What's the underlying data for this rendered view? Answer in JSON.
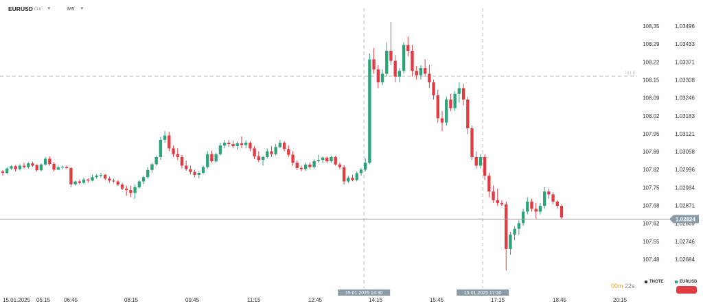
{
  "header": {
    "symbol": "EURUSD",
    "symbol_sub": "CFD",
    "timeframe": "M5"
  },
  "colors": {
    "up": "#2ea37a",
    "down": "#e03c44",
    "grid_dashed": "#bbbbbb",
    "price_line": "#999999",
    "price_tag_bg": "#8a9ba8",
    "countdown": "#f0a030"
  },
  "chart_data": {
    "type": "candlestick",
    "x_ticks": [
      "15.01.2025",
      "05:15",
      "06:45",
      "08:15",
      "09:45",
      "11:15",
      "12:45",
      "14:15",
      "15:45",
      "17:15",
      "18:45",
      "20:15"
    ],
    "y_axis_left": [
      "108.35",
      "108.29",
      "108.22",
      "108.15",
      "108.09",
      "108.02",
      "107.95",
      "107.89",
      "107.82",
      "107.75",
      "107.68",
      "107.62",
      "107.55",
      "107.48"
    ],
    "y_axis_right": [
      "1.03496",
      "1.03433",
      "1.03371",
      "1.03308",
      "1.03246",
      "1.03183",
      "1.03121",
      "1.03058",
      "1.02996",
      "1.02934",
      "1.02871",
      "1.02809",
      "1.02746",
      "1.02684"
    ],
    "ylim_right": [
      1.026,
      1.0356
    ],
    "current_price": "1.02824",
    "current_price_value": 1.02824,
    "horizontal_level": {
      "label": "161.8"
    },
    "event_markers": [
      "15.01.2025 14:30",
      "15.01.2025 17:30"
    ],
    "series": [
      {
        "name": "EURUSD",
        "color": "#2ea37a"
      },
      {
        "name": "TNOTE",
        "color": "#333333"
      }
    ],
    "candles": [
      [
        1.0299,
        1.02995,
        1.02975,
        1.02985
      ],
      [
        1.02985,
        1.03005,
        1.0298,
        1.03
      ],
      [
        1.03,
        1.03012,
        1.02995,
        1.03008
      ],
      [
        1.03008,
        1.03012,
        1.0299,
        1.02998
      ],
      [
        1.02998,
        1.03015,
        1.02993,
        1.0301
      ],
      [
        1.0301,
        1.0302,
        1.03,
        1.03005
      ],
      [
        1.03005,
        1.03022,
        1.03,
        1.03018
      ],
      [
        1.03018,
        1.03024,
        1.03006,
        1.0301
      ],
      [
        1.03012,
        1.03015,
        1.0299,
        1.02994
      ],
      [
        1.02994,
        1.03018,
        1.0299,
        1.03014
      ],
      [
        1.03014,
        1.0304,
        1.0301,
        1.03034
      ],
      [
        1.03034,
        1.03042,
        1.0301,
        1.03016
      ],
      [
        1.03016,
        1.03022,
        1.0299,
        1.02996
      ],
      [
        1.02996,
        1.0301,
        1.02994,
        1.03004
      ],
      [
        1.03004,
        1.0301,
        1.02998,
        1.03006
      ],
      [
        1.03006,
        1.0301,
        1.02998,
        1.03002
      ],
      [
        1.03002,
        1.03004,
        1.02935,
        1.02945
      ],
      [
        1.02945,
        1.02958,
        1.0294,
        1.02955
      ],
      [
        1.02955,
        1.02962,
        1.02945,
        1.0295
      ],
      [
        1.0295,
        1.02968,
        1.02946,
        1.02962
      ],
      [
        1.02962,
        1.02966,
        1.0295,
        1.02958
      ],
      [
        1.02958,
        1.02978,
        1.02955,
        1.0297
      ],
      [
        1.0297,
        1.0298,
        1.02965,
        1.02975
      ],
      [
        1.02975,
        1.02985,
        1.02968,
        1.02978
      ],
      [
        1.02978,
        1.02982,
        1.0296,
        1.02965
      ],
      [
        1.02965,
        1.02972,
        1.0295,
        1.02958
      ],
      [
        1.02958,
        1.02965,
        1.0295,
        1.02955
      ],
      [
        1.02955,
        1.0296,
        1.0294,
        1.02944
      ],
      [
        1.02944,
        1.0295,
        1.02925,
        1.0293
      ],
      [
        1.0293,
        1.0294,
        1.02905,
        1.02925
      ],
      [
        1.02925,
        1.0294,
        1.029,
        1.02915
      ],
      [
        1.02915,
        1.02945,
        1.02895,
        1.02935
      ],
      [
        1.02935,
        1.0296,
        1.0293,
        1.02955
      ],
      [
        1.02955,
        1.02975,
        1.02945,
        1.0297
      ],
      [
        1.0297,
        1.03005,
        1.02965,
        1.02995
      ],
      [
        1.02995,
        1.0302,
        1.02985,
        1.03015
      ],
      [
        1.03015,
        1.03045,
        1.0301,
        1.0304
      ],
      [
        1.0304,
        1.0311,
        1.0303,
        1.031
      ],
      [
        1.031,
        1.0313,
        1.0309,
        1.03115
      ],
      [
        1.03115,
        1.03128,
        1.0306,
        1.0307
      ],
      [
        1.0307,
        1.0308,
        1.0304,
        1.0305
      ],
      [
        1.0305,
        1.0307,
        1.0303,
        1.0304
      ],
      [
        1.0304,
        1.03048,
        1.03,
        1.0301
      ],
      [
        1.0301,
        1.03028,
        1.02992,
        1.02998
      ],
      [
        1.02998,
        1.0301,
        1.0298,
        1.02988
      ],
      [
        1.02988,
        1.02996,
        1.0297,
        1.02978
      ],
      [
        1.02978,
        1.0299,
        1.02965,
        1.02985
      ],
      [
        1.02985,
        1.0301,
        1.0298,
        1.03005
      ],
      [
        1.03005,
        1.0306,
        1.03,
        1.0305
      ],
      [
        1.0305,
        1.03062,
        1.0302,
        1.03025
      ],
      [
        1.03025,
        1.03055,
        1.0302,
        1.0305
      ],
      [
        1.0305,
        1.0309,
        1.03045,
        1.0308
      ],
      [
        1.0308,
        1.031,
        1.0307,
        1.0309
      ],
      [
        1.0309,
        1.031,
        1.03075,
        1.03085
      ],
      [
        1.03085,
        1.03098,
        1.0307,
        1.03078
      ],
      [
        1.03078,
        1.03095,
        1.03065,
        1.03088
      ],
      [
        1.03088,
        1.03112,
        1.0307,
        1.03082
      ],
      [
        1.03082,
        1.03098,
        1.0307,
        1.0309
      ],
      [
        1.0309,
        1.03095,
        1.0306,
        1.0307
      ],
      [
        1.0307,
        1.03078,
        1.03032,
        1.03042
      ],
      [
        1.03042,
        1.0306,
        1.03022,
        1.0303
      ],
      [
        1.0303,
        1.03045,
        1.0301,
        1.0304
      ],
      [
        1.0304,
        1.0307,
        1.03035,
        1.0306
      ],
      [
        1.0306,
        1.03078,
        1.0304,
        1.0305
      ],
      [
        1.0305,
        1.03085,
        1.03045,
        1.03075
      ],
      [
        1.03075,
        1.031,
        1.0307,
        1.0309
      ],
      [
        1.0309,
        1.03095,
        1.0306,
        1.03068
      ],
      [
        1.03068,
        1.0308,
        1.0304,
        1.03048
      ],
      [
        1.03048,
        1.0306,
        1.0301,
        1.0302
      ],
      [
        1.0302,
        1.03028,
        1.02995,
        1.03002
      ],
      [
        1.03002,
        1.0301,
        1.0299,
        1.02998
      ],
      [
        1.02998,
        1.0302,
        1.02992,
        1.03014
      ],
      [
        1.03014,
        1.03022,
        1.02998,
        1.03005
      ],
      [
        1.03005,
        1.03032,
        1.03,
        1.03026
      ],
      [
        1.03026,
        1.03048,
        1.0302,
        1.0303
      ],
      [
        1.0303,
        1.03042,
        1.03018,
        1.03038
      ],
      [
        1.03038,
        1.03042,
        1.0302,
        1.03025
      ],
      [
        1.03025,
        1.03045,
        1.0302,
        1.0304
      ],
      [
        1.0304,
        1.03044,
        1.0301,
        1.03014
      ],
      [
        1.03014,
        1.0302,
        1.02998,
        1.03005
      ],
      [
        1.03005,
        1.03012,
        1.02945,
        1.02955
      ],
      [
        1.02955,
        1.02975,
        1.0295,
        1.02968
      ],
      [
        1.02968,
        1.02978,
        1.02955,
        1.0296
      ],
      [
        1.0296,
        1.0299,
        1.02955,
        1.02984
      ],
      [
        1.02984,
        1.03002,
        1.02975,
        1.02996
      ],
      [
        1.02996,
        1.03035,
        1.0299,
        1.0302
      ],
      [
        1.0302,
        1.034,
        1.03015,
        1.0338
      ],
      [
        1.0338,
        1.0342,
        1.0333,
        1.03345
      ],
      [
        1.03345,
        1.0336,
        1.0328,
        1.033
      ],
      [
        1.033,
        1.03345,
        1.0329,
        1.0333
      ],
      [
        1.0333,
        1.0344,
        1.0332,
        1.0341
      ],
      [
        1.0341,
        1.0351,
        1.0336,
        1.03375
      ],
      [
        1.03375,
        1.03395,
        1.033,
        1.0332
      ],
      [
        1.0332,
        1.0335,
        1.033,
        1.0334
      ],
      [
        1.0334,
        1.0344,
        1.0333,
        1.0343
      ],
      [
        1.0343,
        1.0346,
        1.0339,
        1.0341
      ],
      [
        1.0341,
        1.0343,
        1.0332,
        1.0334
      ],
      [
        1.0334,
        1.03358,
        1.0331,
        1.03325
      ],
      [
        1.03325,
        1.0336,
        1.0331,
        1.0335
      ],
      [
        1.0335,
        1.0338,
        1.0332,
        1.0333
      ],
      [
        1.0333,
        1.0336,
        1.0328,
        1.033
      ],
      [
        1.033,
        1.0331,
        1.0324,
        1.03255
      ],
      [
        1.03255,
        1.03275,
        1.0316,
        1.03175
      ],
      [
        1.03175,
        1.032,
        1.0313,
        1.0316
      ],
      [
        1.0316,
        1.0325,
        1.0315,
        1.0324
      ],
      [
        1.0324,
        1.0326,
        1.032,
        1.0321
      ],
      [
        1.0321,
        1.0327,
        1.032,
        1.0326
      ],
      [
        1.0326,
        1.033,
        1.0323,
        1.0328
      ],
      [
        1.0328,
        1.03295,
        1.0322,
        1.0324
      ],
      [
        1.0324,
        1.0325,
        1.0312,
        1.0314
      ],
      [
        1.0314,
        1.0315,
        1.0303,
        1.0304
      ],
      [
        1.0304,
        1.0306,
        1.03,
        1.0301
      ],
      [
        1.0301,
        1.0305,
        1.03,
        1.0304
      ],
      [
        1.0304,
        1.0305,
        1.0296,
        1.02975
      ],
      [
        1.02975,
        1.02985,
        1.029,
        1.0292
      ],
      [
        1.0292,
        1.0294,
        1.0288,
        1.0289
      ],
      [
        1.0289,
        1.0293,
        1.0287,
        1.0288
      ],
      [
        1.0288,
        1.0289,
        1.0287,
        1.02875
      ],
      [
        1.02875,
        1.02885,
        1.02645,
        1.0272
      ],
      [
        1.0272,
        1.0278,
        1.027,
        1.0277
      ],
      [
        1.0277,
        1.028,
        1.0275,
        1.0279
      ],
      [
        1.0279,
        1.0282,
        1.0277,
        1.0281
      ],
      [
        1.0281,
        1.0286,
        1.028,
        1.0285
      ],
      [
        1.0285,
        1.029,
        1.0284,
        1.02885
      ],
      [
        1.02885,
        1.02895,
        1.0285,
        1.0286
      ],
      [
        1.0286,
        1.0288,
        1.02825,
        1.0285
      ],
      [
        1.0285,
        1.0288,
        1.0284,
        1.0287
      ],
      [
        1.0287,
        1.02935,
        1.0286,
        1.0292
      ],
      [
        1.0292,
        1.0293,
        1.02895,
        1.0291
      ],
      [
        1.0291,
        1.02918,
        1.02875,
        1.02885
      ],
      [
        1.02885,
        1.0289,
        1.0286,
        1.0287
      ],
      [
        1.0287,
        1.02875,
        1.02825,
        1.0283
      ]
    ]
  }
}
